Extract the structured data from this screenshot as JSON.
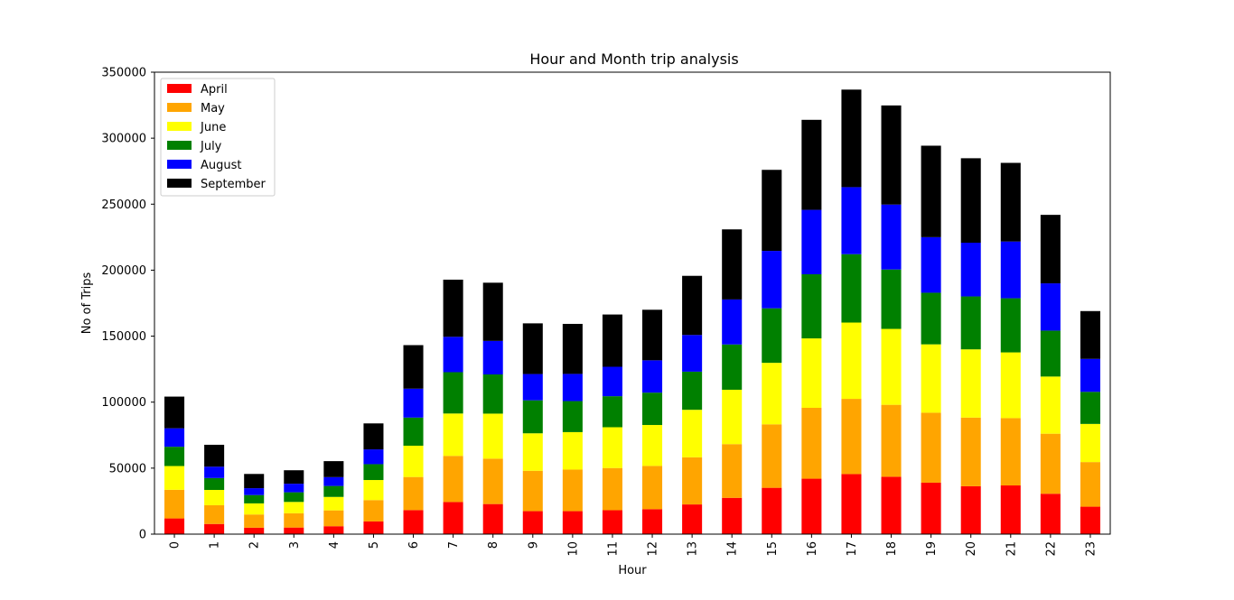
{
  "chart_data": {
    "type": "bar",
    "stacked": true,
    "title": "Hour and Month trip analysis",
    "xlabel": "Hour",
    "ylabel": "No of Trips",
    "ylim": [
      0,
      350000
    ],
    "yticks": [
      "0",
      "50000",
      "100000",
      "150000",
      "200000",
      "250000",
      "300000",
      "350000"
    ],
    "legend_position": "upper-left",
    "categories": [
      "0",
      "1",
      "2",
      "3",
      "4",
      "5",
      "6",
      "7",
      "8",
      "9",
      "10",
      "11",
      "12",
      "13",
      "14",
      "15",
      "16",
      "17",
      "18",
      "19",
      "20",
      "21",
      "22",
      "23"
    ],
    "series": [
      {
        "name": "April",
        "color": "#ff0000",
        "values": [
          11900,
          7700,
          4900,
          5000,
          6000,
          9600,
          18200,
          24300,
          22800,
          17400,
          17400,
          18100,
          18900,
          22500,
          27500,
          35100,
          42000,
          45500,
          43500,
          39000,
          36300,
          36900,
          30600,
          20800
        ]
      },
      {
        "name": "May",
        "color": "#ffa500",
        "values": [
          21700,
          14200,
          10000,
          10800,
          12000,
          16200,
          25100,
          35000,
          34400,
          30600,
          31500,
          32000,
          32800,
          35700,
          40700,
          48100,
          53700,
          57000,
          54500,
          53000,
          52000,
          51000,
          45500,
          33800
        ]
      },
      {
        "name": "June",
        "color": "#ffff00",
        "values": [
          18000,
          11600,
          8400,
          8600,
          10200,
          15200,
          23700,
          32100,
          34100,
          28400,
          28400,
          30900,
          31000,
          36000,
          41200,
          46600,
          52600,
          57800,
          57500,
          51800,
          51700,
          49800,
          43300,
          28900
        ]
      },
      {
        "name": "July",
        "color": "#008000",
        "values": [
          14600,
          9000,
          6300,
          7300,
          8300,
          12000,
          21300,
          31300,
          29700,
          25000,
          23500,
          23500,
          24500,
          28900,
          34300,
          41300,
          48600,
          51800,
          45000,
          39100,
          40100,
          41000,
          34800,
          24300
        ]
      },
      {
        "name": "August",
        "color": "#0000ff",
        "values": [
          14000,
          8600,
          5200,
          6500,
          6700,
          11200,
          21900,
          26800,
          25400,
          19900,
          20600,
          22300,
          24500,
          27800,
          34100,
          43500,
          48800,
          50800,
          49200,
          42100,
          40700,
          43000,
          35800,
          25000
        ]
      },
      {
        "name": "September",
        "color": "#000000",
        "values": [
          24000,
          16600,
          10800,
          10200,
          12100,
          19700,
          33000,
          43300,
          44100,
          38400,
          37900,
          39600,
          38300,
          44800,
          53100,
          61400,
          68200,
          73900,
          75100,
          69300,
          64000,
          59600,
          51900,
          36200
        ]
      }
    ]
  }
}
